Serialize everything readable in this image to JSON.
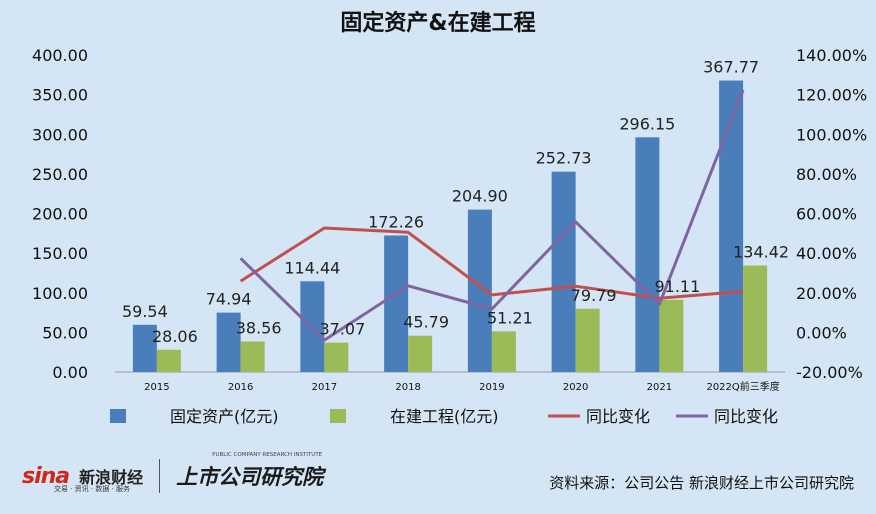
{
  "chart_data": {
    "type": "bar",
    "title": "固定资产&在建工程",
    "categories": [
      "2015",
      "2016",
      "2017",
      "2018",
      "2019",
      "2020",
      "2021",
      "2022Q前三季度"
    ],
    "series": [
      {
        "name": "固定资产(亿元)",
        "kind": "bar",
        "axis": "left",
        "color": "#4a7ebb",
        "values": [
          59.54,
          74.94,
          114.44,
          172.26,
          204.9,
          252.73,
          296.15,
          367.77
        ],
        "labels": [
          "59.54",
          "74.94",
          "114.44",
          "172.26",
          "204.90",
          "252.73",
          "296.15",
          "367.77"
        ]
      },
      {
        "name": "在建工程(亿元)",
        "kind": "bar",
        "axis": "left",
        "color": "#9bbb59",
        "values": [
          28.06,
          38.56,
          37.07,
          45.79,
          51.21,
          79.79,
          91.11,
          134.42
        ],
        "labels": [
          "28.06",
          "38.56",
          "37.07",
          "45.79",
          "51.21",
          "79.79",
          "91.11",
          "134.42"
        ]
      },
      {
        "name": "同比变化",
        "kind": "line",
        "axis": "right",
        "color": "#c0504d",
        "values": [
          null,
          25.9,
          52.7,
          50.5,
          18.9,
          23.3,
          17.2,
          20.7
        ]
      },
      {
        "name": "同比变化",
        "kind": "line",
        "axis": "right",
        "color": "#8064a2",
        "values": [
          null,
          37.4,
          -3.9,
          23.5,
          11.8,
          55.8,
          14.2,
          122.3
        ]
      }
    ],
    "y_left": {
      "min": 0,
      "max": 400,
      "step": 50,
      "ticks": [
        "0.00",
        "50.00",
        "100.00",
        "150.00",
        "200.00",
        "250.00",
        "300.00",
        "350.00",
        "400.00"
      ]
    },
    "y_right": {
      "min": -20,
      "max": 140,
      "step": 20,
      "ticks": [
        "-20.00%",
        "0.00%",
        "20.00%",
        "40.00%",
        "60.00%",
        "80.00%",
        "100.00%",
        "120.00%",
        "140.00%"
      ]
    },
    "legend_position": "bottom",
    "grid": false
  },
  "colors": {
    "background": "#d4e6f5",
    "axis": "#999999"
  },
  "footer": {
    "sina_logo": "sina",
    "sina_cn": "新浪财经",
    "sina_sub": "交易 · 资讯 · 数据 · 服务",
    "research_logo": "上市公司研究院",
    "research_en": "PUBLIC COMPANY RESEARCH INSTITUTE",
    "source": "资料来源：公司公告  新浪财经上市公司研究院"
  }
}
